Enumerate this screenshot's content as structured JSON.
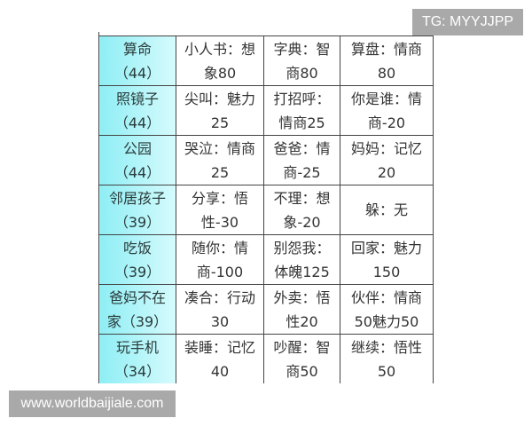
{
  "watermarks": {
    "top": "TG: MYYJJPP",
    "bottom": "www.worldbaijiale.com"
  },
  "rows": [
    {
      "head": [
        "算命",
        "（44）"
      ],
      "cells": [
        [
          "小人书：想",
          "象80"
        ],
        [
          "字典：智",
          "商80"
        ],
        [
          "算盘：情商",
          "80"
        ]
      ]
    },
    {
      "head": [
        "照镜子",
        "（44）"
      ],
      "cells": [
        [
          "尖叫：魅力",
          "25"
        ],
        [
          "打招呼：",
          "情商25"
        ],
        [
          "你是谁：情",
          "商-20"
        ]
      ]
    },
    {
      "head": [
        "公园",
        "（44）"
      ],
      "cells": [
        [
          "哭泣：情商",
          "25"
        ],
        [
          "爸爸：情",
          "商-25"
        ],
        [
          "妈妈：记忆",
          "20"
        ]
      ]
    },
    {
      "head": [
        "邻居孩子",
        "（39）"
      ],
      "cells": [
        [
          "分享：悟",
          "性-30"
        ],
        [
          "不理：想",
          "象-20"
        ],
        [
          "躲：无"
        ]
      ]
    },
    {
      "head": [
        "吃饭",
        "（39）"
      ],
      "cells": [
        [
          "随你：情",
          "商-100"
        ],
        [
          "别怨我：",
          "体魄125"
        ],
        [
          "回家：魅力",
          "150"
        ]
      ]
    },
    {
      "head": [
        "爸妈不在",
        "家（39）"
      ],
      "cells": [
        [
          "凑合：行动",
          "30"
        ],
        [
          "外卖：悟",
          "性20"
        ],
        [
          "伙伴：情商",
          "50魅力50"
        ]
      ]
    },
    {
      "head": [
        "玩手机",
        "（34）"
      ],
      "cells": [
        [
          "装睡：记忆",
          "40"
        ],
        [
          "吵醒：智",
          "商50"
        ],
        [
          "继续：悟性",
          "50"
        ]
      ]
    }
  ],
  "colors": {
    "head_bg": "#8eeef4",
    "border": "#444444"
  }
}
